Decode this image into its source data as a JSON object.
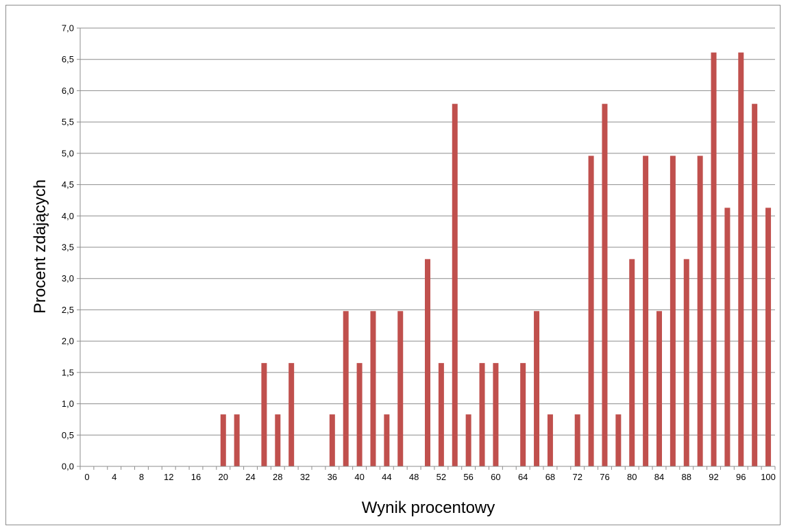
{
  "chart_data": {
    "type": "bar",
    "title": "",
    "xlabel": "Wynik procentowy",
    "ylabel": "Procent zdających",
    "ylim": [
      0,
      7
    ],
    "ytick_step": 0.5,
    "ytick_decimal_separator": ",",
    "grid": "horizontal",
    "legend": "none",
    "bar_color": "#c0504d",
    "categories": [
      0,
      2,
      4,
      6,
      8,
      10,
      12,
      14,
      16,
      18,
      20,
      22,
      24,
      26,
      28,
      30,
      32,
      34,
      36,
      38,
      40,
      42,
      44,
      46,
      48,
      50,
      52,
      54,
      56,
      58,
      60,
      62,
      64,
      66,
      68,
      70,
      72,
      74,
      76,
      78,
      80,
      82,
      84,
      86,
      88,
      90,
      92,
      94,
      96,
      98,
      100
    ],
    "x_tick_labels": [
      "0",
      "4",
      "8",
      "12",
      "16",
      "20",
      "24",
      "28",
      "32",
      "36",
      "40",
      "44",
      "48",
      "52",
      "56",
      "60",
      "64",
      "68",
      "72",
      "76",
      "80",
      "84",
      "88",
      "92",
      "96",
      "100"
    ],
    "values": [
      0,
      0,
      0,
      0,
      0,
      0,
      0,
      0,
      0,
      0,
      0.83,
      0.83,
      0,
      1.65,
      0.83,
      1.65,
      0,
      0,
      0.83,
      2.48,
      1.65,
      2.48,
      0.83,
      2.48,
      0,
      3.31,
      1.65,
      5.79,
      0.83,
      1.65,
      1.65,
      0,
      1.65,
      2.48,
      0.83,
      0,
      0.83,
      4.96,
      5.79,
      0.83,
      3.31,
      4.96,
      2.48,
      4.96,
      3.31,
      4.96,
      6.61,
      4.13,
      6.61,
      5.79,
      4.13
    ]
  }
}
